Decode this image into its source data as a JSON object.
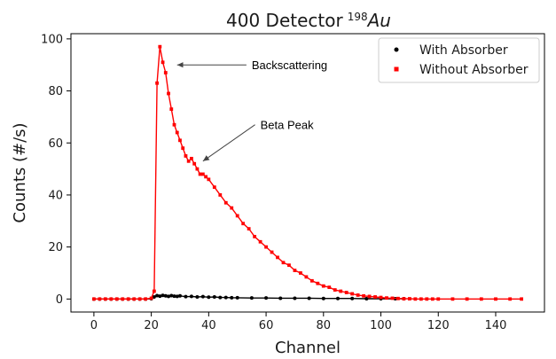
{
  "chart_data": {
    "type": "scatter",
    "title": "400 Detector",
    "title_isotope_mass": "198",
    "title_isotope_symbol": "Au",
    "xlabel": "Channel",
    "ylabel": "Counts (#/s)",
    "xlim": [
      -8,
      157
    ],
    "ylim": [
      -5,
      102
    ],
    "x_ticks": [
      0,
      20,
      40,
      60,
      80,
      100,
      120,
      140
    ],
    "y_ticks": [
      0,
      20,
      40,
      60,
      80,
      100
    ],
    "grid": false,
    "legend_position": "top-right",
    "series": [
      {
        "name": "With Absorber",
        "color": "#000000",
        "marker": "circle",
        "x": [
          0,
          2,
          4,
          6,
          8,
          10,
          12,
          14,
          16,
          18,
          20,
          21,
          22,
          23,
          24,
          25,
          26,
          27,
          28,
          29,
          30,
          32,
          34,
          36,
          38,
          40,
          42,
          44,
          46,
          48,
          50,
          55,
          60,
          65,
          70,
          75,
          80,
          85,
          90,
          95,
          100,
          105,
          108
        ],
        "y": [
          0,
          0,
          0,
          0,
          0,
          0,
          0,
          0,
          0,
          0,
          0.1,
          0.8,
          1.3,
          1.1,
          1.4,
          1.2,
          1.0,
          1.3,
          1.1,
          1.0,
          1.2,
          0.9,
          1.0,
          0.8,
          0.9,
          0.7,
          0.8,
          0.6,
          0.6,
          0.5,
          0.5,
          0.4,
          0.4,
          0.3,
          0.3,
          0.3,
          0.2,
          0.2,
          0.2,
          0.1,
          0.1,
          0.1,
          0.1
        ]
      },
      {
        "name": "Without Absorber",
        "color": "#ff0000",
        "marker": "square",
        "x": [
          0,
          2,
          4,
          6,
          8,
          10,
          12,
          14,
          16,
          18,
          20,
          21,
          22,
          23,
          24,
          25,
          26,
          27,
          28,
          29,
          30,
          31,
          32,
          33,
          34,
          35,
          36,
          37,
          38,
          39,
          40,
          42,
          44,
          46,
          48,
          50,
          52,
          54,
          56,
          58,
          60,
          62,
          64,
          66,
          68,
          70,
          72,
          74,
          76,
          78,
          80,
          82,
          84,
          86,
          88,
          90,
          92,
          94,
          96,
          98,
          100,
          102,
          104,
          106,
          108,
          110,
          112,
          114,
          116,
          118,
          120,
          125,
          130,
          135,
          140,
          145,
          149
        ],
        "y": [
          0,
          0,
          0,
          0,
          0,
          0,
          0,
          0,
          0,
          0,
          0.3,
          3,
          83,
          97,
          91,
          87,
          79,
          73,
          67,
          64,
          61,
          58,
          55,
          53,
          54,
          52,
          50,
          48,
          48,
          47,
          46,
          43,
          40,
          37,
          35,
          32,
          29,
          27,
          24,
          22,
          20,
          18,
          16,
          14,
          13,
          11,
          10,
          8.5,
          7,
          6,
          5,
          4.5,
          3.5,
          3,
          2.5,
          2,
          1.5,
          1.2,
          1,
          0.8,
          0.6,
          0.4,
          0.3,
          0.2,
          0.1,
          0.1,
          0,
          0,
          0,
          0,
          0,
          0,
          0,
          0,
          0,
          0,
          0
        ]
      }
    ],
    "annotations": [
      {
        "text": "Backscattering",
        "xy": [
          29,
          90
        ],
        "text_xy": [
          55,
          90
        ]
      },
      {
        "text": "Beta Peak",
        "xy": [
          38,
          53
        ],
        "text_xy": [
          58,
          67
        ]
      }
    ]
  }
}
